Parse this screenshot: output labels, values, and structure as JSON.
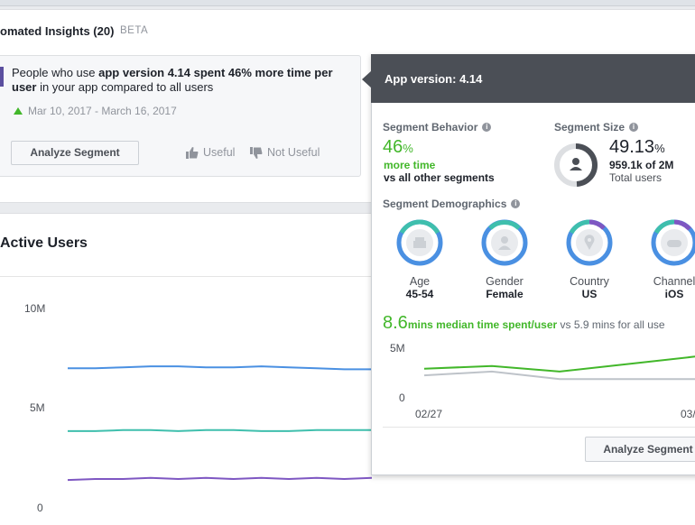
{
  "insights": {
    "title": "omated Insights (20)",
    "beta": "BETA",
    "card": {
      "text_prefix": "People who use ",
      "text_bold": "app version 4.14 spent 46% more time per user",
      "text_suffix": " in your app compared to all users",
      "date_range": "Mar 10, 2017 - March 16, 2017",
      "analyze_label": "Analyze Segment",
      "useful_label": "Useful",
      "not_useful_label": "Not Useful"
    }
  },
  "active_users": {
    "title": "Active Users",
    "y_ticks": [
      "10M",
      "5M",
      "0"
    ]
  },
  "popover": {
    "title": "App version: 4.14",
    "segment_behavior": {
      "label": "Segment Behavior",
      "value": "46",
      "unit": "%",
      "line1": "more time",
      "line2": "vs all other segments"
    },
    "segment_size": {
      "label": "Segment Size",
      "value": "49.13",
      "unit": "%",
      "count": "959.1k of 2M",
      "sub": "Total users",
      "fraction": 0.4913
    },
    "demographics": {
      "label": "Segment Demographics",
      "items": [
        {
          "label": "Age",
          "value": "45-54",
          "icon": "cake-icon"
        },
        {
          "label": "Gender",
          "value": "Female",
          "icon": "person-icon"
        },
        {
          "label": "Country",
          "value": "US",
          "icon": "map-pin-icon"
        },
        {
          "label": "Channel",
          "value": "iOS",
          "icon": "gamepad-icon"
        }
      ]
    },
    "median": {
      "value": "8.6",
      "green_text": "mins median time spent/user",
      "rest_text": " vs 5.9 mins for all use"
    },
    "mini_chart": {
      "y_ticks": [
        "5M",
        "0"
      ],
      "x_ticks": [
        "02/27",
        "03/"
      ]
    },
    "analyze_label": "Analyze Segment"
  },
  "colors": {
    "blue": "#4a90e2",
    "teal": "#3fbfad",
    "purple": "#7e57c2",
    "green": "#42b72a",
    "gray": "#bec3c9"
  },
  "chart_data": [
    {
      "type": "line",
      "title": "Active Users",
      "ylim": [
        0,
        10000000
      ],
      "y_ticks": [
        "10M",
        "5M",
        "0"
      ],
      "series": [
        {
          "values": [
            7000000,
            7000000,
            7050000,
            7100000,
            7100000,
            7050000,
            7050000,
            7100000,
            7050000,
            7000000,
            6950000,
            6950000
          ]
        },
        {
          "values": [
            3850000,
            3850000,
            3900000,
            3900000,
            3850000,
            3900000,
            3900000,
            3850000,
            3850000,
            3900000,
            3900000,
            3900000
          ]
        },
        {
          "values": [
            1400000,
            1450000,
            1450000,
            1500000,
            1450000,
            1500000,
            1450000,
            1500000,
            1450000,
            1500000,
            1450000,
            1500000
          ]
        }
      ]
    },
    {
      "type": "line",
      "ylim": [
        0,
        5000000
      ],
      "y_ticks": [
        "5M",
        "0"
      ],
      "x_ticks": [
        "02/27",
        "03/"
      ],
      "series": [
        {
          "values": [
            3000000,
            3300000,
            2700000,
            3500000,
            4300000
          ]
        },
        {
          "values": [
            2300000,
            2700000,
            1900000,
            1900000,
            1900000
          ]
        }
      ]
    }
  ]
}
